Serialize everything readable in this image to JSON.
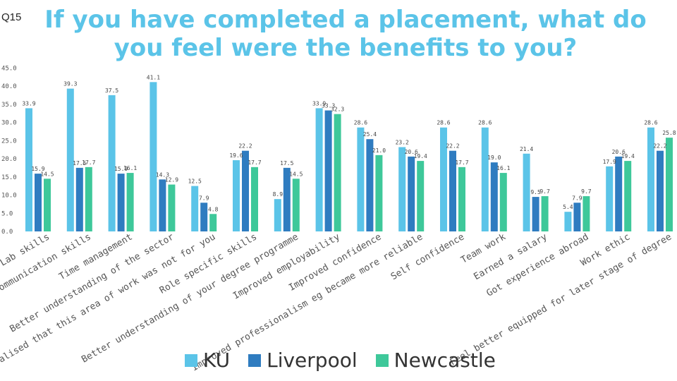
{
  "question_number": "Q15",
  "chart_data": {
    "type": "bar",
    "title": "If you have completed a placement, what do you feel were the benefits to you?",
    "xlabel": "",
    "ylabel": "",
    "ylim": [
      0,
      45
    ],
    "yticks": [
      "0.0",
      "5.0",
      "10.0",
      "15.0",
      "20.0",
      "25.0",
      "30.0",
      "35.0",
      "40.0",
      "45.0"
    ],
    "grid": false,
    "legend_position": "bottom",
    "categories": [
      "Lab skills",
      "Communication skills",
      "Time management",
      "Better understanding of the sector",
      "Realised that this area of work was not for you",
      "Role specific skills",
      "Better understanding of your degree programme",
      "Improved employability",
      "Improved confidence",
      "Improved professionalism eg became more reliable",
      "Self confidence",
      "Team work",
      "Earned a salary",
      "Got experience abroad",
      "Work ethic",
      "Feel better equipped for later stage of degree"
    ],
    "series": [
      {
        "name": "KU",
        "color": "#5bc4e8",
        "values": [
          33.9,
          39.3,
          37.5,
          41.1,
          12.5,
          19.6,
          8.9,
          33.9,
          28.6,
          23.2,
          28.6,
          28.6,
          21.4,
          5.4,
          17.9,
          28.6
        ],
        "labels": [
          "33.9",
          "39.3",
          "37.5",
          "41.1",
          "12.5",
          "19.6",
          "8.9",
          "33.9",
          "28.6",
          "23.2",
          "28.6",
          "28.6",
          "21.4",
          "5.4",
          "17.9",
          "28.6"
        ]
      },
      {
        "name": "Liverpool",
        "color": "#2f7cc0",
        "values": [
          15.9,
          17.5,
          15.9,
          14.3,
          7.9,
          22.2,
          17.5,
          33.3,
          25.4,
          20.6,
          22.2,
          19.0,
          9.5,
          7.9,
          20.6,
          22.2
        ],
        "labels": [
          "15.9",
          "17.5",
          "15.9",
          "14.3",
          "7.9",
          "22.2",
          "17.5",
          "33.3",
          "25.4",
          "20.6",
          "22.2",
          "19.0",
          "9.5",
          "7.9",
          "20.6",
          "22.2"
        ]
      },
      {
        "name": "Newcastle",
        "color": "#3ec89a",
        "values": [
          14.5,
          17.7,
          16.1,
          12.9,
          4.8,
          17.7,
          14.5,
          32.3,
          21.0,
          19.4,
          17.7,
          16.1,
          9.7,
          9.7,
          19.4,
          25.8
        ],
        "labels": [
          "14.5",
          "17.7",
          "16.1",
          "12.9",
          "4.8",
          "17.7",
          "14.5",
          "32.3",
          "21.0",
          "19.4",
          "17.7",
          "16.1",
          "9.7",
          "9.7",
          "19.4",
          "25.8"
        ]
      }
    ]
  }
}
